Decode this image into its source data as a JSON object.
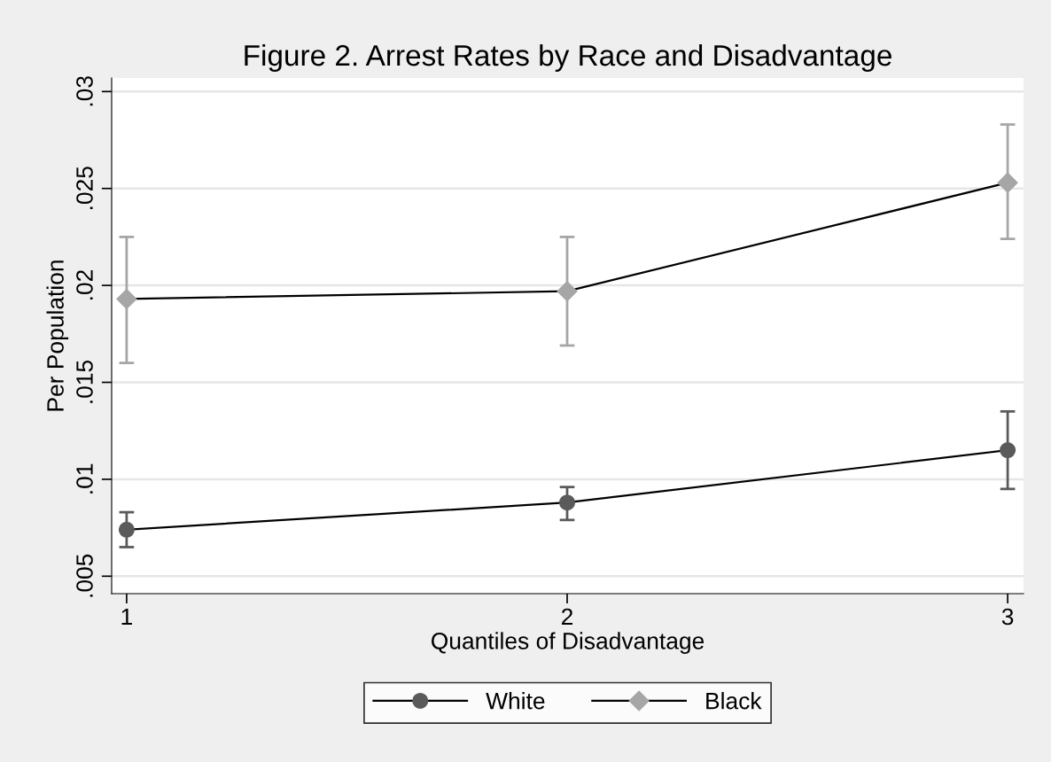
{
  "chart_data": {
    "type": "line",
    "title": "Figure 2. Arrest Rates by Race and Disadvantage",
    "xlabel": "Quantiles of Disadvantage",
    "ylabel": "Per Population",
    "x": [
      1,
      2,
      3
    ],
    "series": [
      {
        "name": "White",
        "color": "#5a5a5a",
        "marker": "circle",
        "values": [
          0.0074,
          0.0088,
          0.0115
        ],
        "errors": [
          [
            0.0065,
            0.0083
          ],
          [
            0.0079,
            0.0096
          ],
          [
            0.0095,
            0.0135
          ]
        ]
      },
      {
        "name": "Black",
        "color": "#a6a6a6",
        "marker": "diamond",
        "values": [
          0.0193,
          0.0197,
          0.0253
        ],
        "errors": [
          [
            0.016,
            0.0225
          ],
          [
            0.0169,
            0.0225
          ],
          [
            0.0224,
            0.0283
          ]
        ]
      }
    ],
    "xlim": [
      0.966,
      3.036
    ],
    "xticks": [
      1,
      2,
      3
    ],
    "ylim": [
      0.0041,
      0.0307
    ],
    "yticks": [
      {
        "value": 0.005,
        "label": ".005"
      },
      {
        "value": 0.01,
        "label": ".01"
      },
      {
        "value": 0.015,
        "label": ".015"
      },
      {
        "value": 0.02,
        "label": ".02"
      },
      {
        "value": 0.025,
        "label": ".025"
      },
      {
        "value": 0.03,
        "label": ".03"
      }
    ],
    "grid": "y",
    "legend": "bottom",
    "line_style": "solid"
  }
}
